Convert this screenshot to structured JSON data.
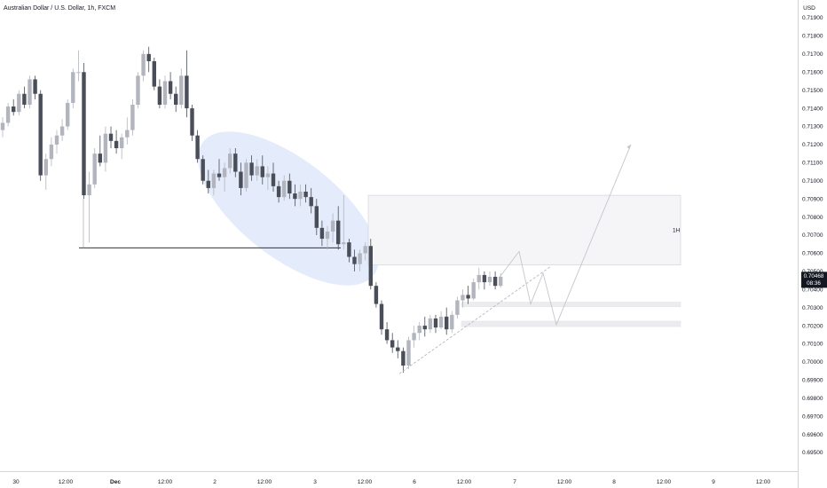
{
  "header": {
    "title": "Australian Dollar / U.S. Dollar, 1h, FXCM",
    "currency": "USD"
  },
  "price_badge": {
    "price": "0.70468",
    "countdown": "08:36"
  },
  "annotations": {
    "zone_label": "1H"
  },
  "chart_data": {
    "type": "candlestick",
    "title": "Australian Dollar / U.S. Dollar, 1h, FXCM",
    "ylabel": "USD",
    "ylim": [
      0.6945,
      0.7195
    ],
    "y_ticks": [
      "0.71900",
      "0.71800",
      "0.71700",
      "0.71600",
      "0.71500",
      "0.71400",
      "0.71300",
      "0.71200",
      "0.71100",
      "0.71000",
      "0.70900",
      "0.70800",
      "0.70700",
      "0.70600",
      "0.70500",
      "0.70400",
      "0.70300",
      "0.70200",
      "0.70100",
      "0.70000",
      "0.69900",
      "0.69800",
      "0.69700",
      "0.69600",
      "0.69500"
    ],
    "x_ticks": [
      "30",
      "12:00",
      "Dec",
      "12:00",
      "2",
      "12:00",
      "3",
      "12:00",
      "6",
      "12:00",
      "7",
      "12:00",
      "8",
      "12:00",
      "9",
      "12:00"
    ],
    "last_price": 0.70468,
    "series": [
      {
        "values": [
          [
            0.7128,
            0.7135,
            0.7124,
            0.7132
          ],
          [
            0.7132,
            0.7143,
            0.713,
            0.7141
          ],
          [
            0.7141,
            0.7145,
            0.7136,
            0.7138
          ],
          [
            0.7138,
            0.715,
            0.7136,
            0.7148
          ],
          [
            0.7148,
            0.7152,
            0.714,
            0.7142
          ],
          [
            0.7142,
            0.7158,
            0.714,
            0.7156
          ],
          [
            0.7156,
            0.7158,
            0.7145,
            0.7148
          ],
          [
            0.7148,
            0.715,
            0.71,
            0.7103
          ],
          [
            0.7103,
            0.7115,
            0.7095,
            0.7112
          ],
          [
            0.7112,
            0.7124,
            0.7108,
            0.712
          ],
          [
            0.712,
            0.7128,
            0.7115,
            0.7125
          ],
          [
            0.7125,
            0.7134,
            0.7122,
            0.713
          ],
          [
            0.713,
            0.7145,
            0.7128,
            0.7143
          ],
          [
            0.7143,
            0.7162,
            0.714,
            0.716
          ],
          [
            0.716,
            0.7172,
            0.7155,
            0.716
          ],
          [
            0.716,
            0.7165,
            0.709,
            0.7092
          ],
          [
            0.7092,
            0.7105,
            0.7066,
            0.7098
          ],
          [
            0.7098,
            0.7118,
            0.7096,
            0.7115
          ],
          [
            0.7115,
            0.7125,
            0.7108,
            0.711
          ],
          [
            0.711,
            0.713,
            0.7105,
            0.7126
          ],
          [
            0.7126,
            0.713,
            0.7118,
            0.7122
          ],
          [
            0.7122,
            0.7128,
            0.7115,
            0.7118
          ],
          [
            0.7118,
            0.7126,
            0.7112,
            0.7124
          ],
          [
            0.7124,
            0.7135,
            0.712,
            0.7128
          ],
          [
            0.7128,
            0.7145,
            0.7125,
            0.7142
          ],
          [
            0.7142,
            0.716,
            0.714,
            0.7158
          ],
          [
            0.7158,
            0.7172,
            0.7155,
            0.717
          ],
          [
            0.717,
            0.7174,
            0.716,
            0.7166
          ],
          [
            0.7166,
            0.7168,
            0.715,
            0.7152
          ],
          [
            0.7152,
            0.7156,
            0.714,
            0.7142
          ],
          [
            0.7142,
            0.7158,
            0.714,
            0.7155
          ],
          [
            0.7155,
            0.716,
            0.7145,
            0.7148
          ],
          [
            0.7148,
            0.7152,
            0.7138,
            0.7142
          ],
          [
            0.7142,
            0.7162,
            0.714,
            0.7158
          ],
          [
            0.7158,
            0.7172,
            0.7135,
            0.714
          ],
          [
            0.714,
            0.7142,
            0.7122,
            0.7125
          ],
          [
            0.7125,
            0.7128,
            0.711,
            0.7112
          ],
          [
            0.7112,
            0.7114,
            0.7098,
            0.71
          ],
          [
            0.71,
            0.7106,
            0.7093,
            0.7096
          ],
          [
            0.7096,
            0.7106,
            0.7092,
            0.7104
          ],
          [
            0.7104,
            0.7112,
            0.71,
            0.7102
          ],
          [
            0.7102,
            0.711,
            0.7094,
            0.7107
          ],
          [
            0.7107,
            0.7118,
            0.7104,
            0.7115
          ],
          [
            0.7115,
            0.7118,
            0.7102,
            0.7105
          ],
          [
            0.7105,
            0.711,
            0.7092,
            0.7096
          ],
          [
            0.7096,
            0.7112,
            0.7094,
            0.711
          ],
          [
            0.711,
            0.7114,
            0.71,
            0.7103
          ],
          [
            0.7103,
            0.7112,
            0.71,
            0.7108
          ],
          [
            0.7108,
            0.7114,
            0.7098,
            0.7102
          ],
          [
            0.7102,
            0.7108,
            0.7095,
            0.7104
          ],
          [
            0.7104,
            0.711,
            0.7094,
            0.7097
          ],
          [
            0.7097,
            0.71,
            0.7088,
            0.7091
          ],
          [
            0.7091,
            0.7103,
            0.7089,
            0.71
          ],
          [
            0.71,
            0.7104,
            0.709,
            0.7093
          ],
          [
            0.7093,
            0.7098,
            0.7086,
            0.709
          ],
          [
            0.709,
            0.7098,
            0.7086,
            0.7094
          ],
          [
            0.7094,
            0.7098,
            0.7088,
            0.7091
          ],
          [
            0.7091,
            0.7096,
            0.7082,
            0.7086
          ],
          [
            0.7086,
            0.709,
            0.707,
            0.7074
          ],
          [
            0.7074,
            0.7078,
            0.7064,
            0.7068
          ],
          [
            0.7068,
            0.7075,
            0.7062,
            0.7072
          ],
          [
            0.7072,
            0.7082,
            0.7066,
            0.7078
          ],
          [
            0.7078,
            0.7086,
            0.7062,
            0.7065
          ],
          [
            0.7065,
            0.7092,
            0.7062,
            0.7066
          ],
          [
            0.7066,
            0.7068,
            0.7055,
            0.7058
          ],
          [
            0.7058,
            0.7062,
            0.705,
            0.7054
          ],
          [
            0.7054,
            0.7062,
            0.705,
            0.706
          ],
          [
            0.706,
            0.7066,
            0.7056,
            0.7064
          ],
          [
            0.7064,
            0.7068,
            0.704,
            0.7042
          ],
          [
            0.7042,
            0.7044,
            0.703,
            0.7032
          ],
          [
            0.7032,
            0.7034,
            0.7015,
            0.7018
          ],
          [
            0.7018,
            0.7022,
            0.701,
            0.7012
          ],
          [
            0.7012,
            0.7016,
            0.7005,
            0.7008
          ],
          [
            0.7008,
            0.7012,
            0.7002,
            0.7006
          ],
          [
            0.7006,
            0.7008,
            0.6994,
            0.6998
          ],
          [
            0.6998,
            0.7014,
            0.6996,
            0.7012
          ],
          [
            0.7012,
            0.702,
            0.7008,
            0.7016
          ],
          [
            0.7016,
            0.7022,
            0.7012,
            0.702
          ],
          [
            0.702,
            0.7025,
            0.7014,
            0.7018
          ],
          [
            0.7018,
            0.7026,
            0.7016,
            0.7024
          ],
          [
            0.7024,
            0.7026,
            0.7016,
            0.7019
          ],
          [
            0.7019,
            0.7028,
            0.7018,
            0.7025
          ],
          [
            0.7025,
            0.703,
            0.7015,
            0.7018
          ],
          [
            0.7018,
            0.7028,
            0.7016,
            0.7026
          ],
          [
            0.7026,
            0.7036,
            0.7024,
            0.7034
          ],
          [
            0.7034,
            0.704,
            0.703,
            0.7037
          ],
          [
            0.7037,
            0.7042,
            0.7032,
            0.7035
          ],
          [
            0.7035,
            0.7046,
            0.7034,
            0.7044
          ],
          [
            0.7044,
            0.7052,
            0.704,
            0.7048
          ],
          [
            0.7048,
            0.705,
            0.704,
            0.7044
          ],
          [
            0.7044,
            0.705,
            0.7042,
            0.7047
          ],
          [
            0.7047,
            0.705,
            0.704,
            0.7042
          ],
          [
            0.7042,
            0.7049,
            0.7041,
            0.7047
          ]
        ]
      }
    ],
    "annotations": {
      "support_line_price": 0.7063,
      "zone_1h": [
        0.70535,
        0.7092
      ],
      "zone_small_1": [
        0.70305,
        0.7033
      ],
      "zone_small_2": [
        0.70195,
        0.70225
      ],
      "trendline": [
        [
          0.69935,
          0.70525
        ]
      ],
      "projection": [
        0.70468,
        0.7061,
        0.7032,
        0.7049,
        0.70205,
        0.712
      ]
    }
  }
}
